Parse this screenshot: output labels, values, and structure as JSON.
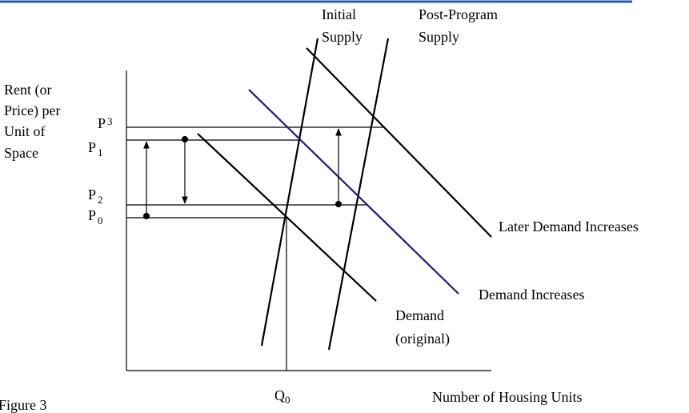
{
  "figure_label": "Figure 3",
  "y_axis_label": [
    "Rent (or",
    "Price) per",
    "Unit of",
    "Space"
  ],
  "x_axis_label": "Number of Housing Units",
  "quantity_label": {
    "symbol": "Q",
    "subscript": "0"
  },
  "price_levels": [
    {
      "symbol": "P",
      "subscript": "3"
    },
    {
      "symbol": "P",
      "subscript": "1"
    },
    {
      "symbol": "P",
      "subscript": "2"
    },
    {
      "symbol": "P",
      "subscript": "0"
    }
  ],
  "curves": {
    "initial_supply": [
      "Initial",
      "Supply"
    ],
    "post_program_supply": [
      "Post-Program",
      "Supply"
    ],
    "demand_original": [
      "Demand",
      "(original)"
    ],
    "demand_increases": "Demand Increases",
    "later_demand_increases": "Later Demand Increases"
  }
}
